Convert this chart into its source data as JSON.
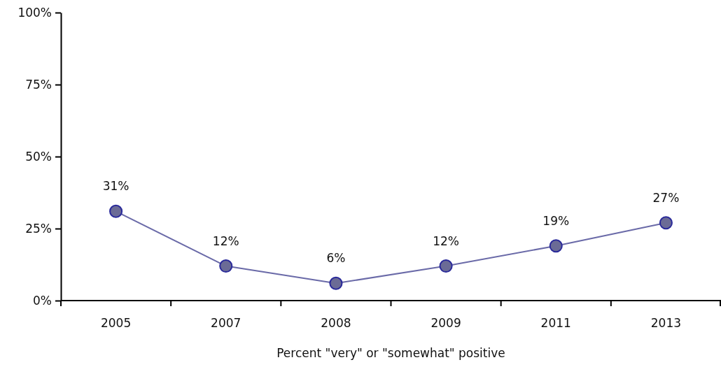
{
  "chart_data": {
    "type": "line",
    "xlabel": "Percent \"very\" or \"somewhat\" positive",
    "categories": [
      "2005",
      "2007",
      "2008",
      "2009",
      "2011",
      "2013"
    ],
    "series": [
      {
        "color": "#6a6aa8",
        "values": [
          31,
          12,
          6,
          12,
          19,
          27
        ],
        "value_labels": [
          "31%",
          "12%",
          "6%",
          "12%",
          "19%",
          "27%"
        ]
      }
    ],
    "ylim": [
      0,
      100
    ],
    "yticks": [
      {
        "value": 0,
        "label": "0%"
      },
      {
        "value": 25,
        "label": "25%"
      },
      {
        "value": 50,
        "label": "50%"
      },
      {
        "value": 75,
        "label": "75%"
      },
      {
        "value": 100,
        "label": "100%"
      }
    ],
    "marker": "circle",
    "line_style": "solid",
    "grid": false
  }
}
